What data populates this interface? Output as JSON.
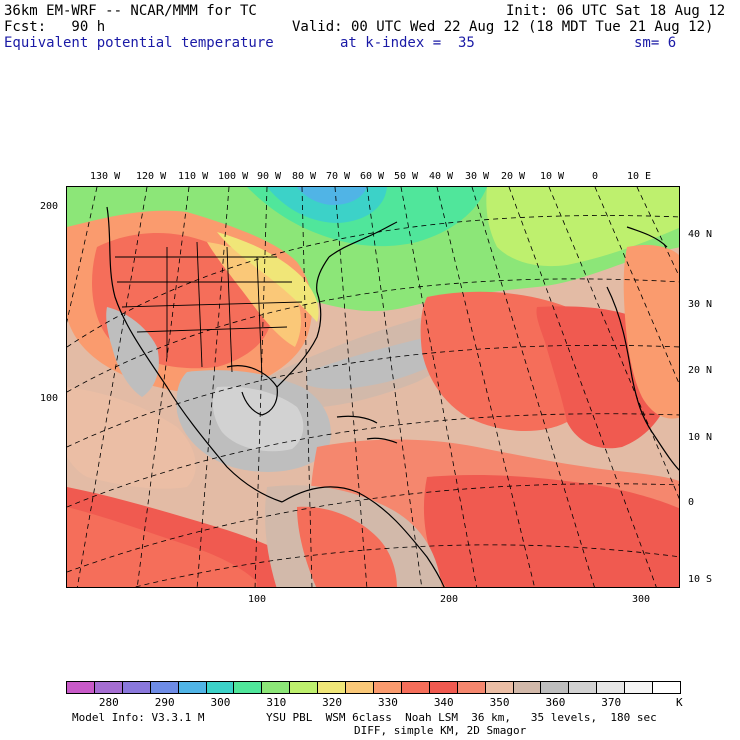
{
  "header": {
    "title": "36km EM-WRF -- NCAR/MMM for TC",
    "init": "Init: 06 UTC Sat 18 Aug 12",
    "fcst": "Fcst:   90 h",
    "valid": "Valid: 00 UTC Wed 22 Aug 12 (18 MDT Tue 21 Aug 12)",
    "field": "Equivalent potential temperature",
    "level": "at k-index =  35",
    "smooth": "sm= 6"
  },
  "map": {
    "lon_labels": [
      "130 W",
      "120 W",
      "110 W",
      "100 W",
      "90 W",
      "80 W",
      "70 W",
      "60 W",
      "50 W",
      "40 W",
      "30 W",
      "20 W",
      "10 W",
      "0",
      "10 E"
    ],
    "lat_labels": [
      "40 N",
      "30 N",
      "20 N",
      "10 N",
      "0",
      "10 S"
    ],
    "grid_y_labels": [
      "200",
      "100"
    ],
    "grid_x_labels": [
      "100",
      "200",
      "300"
    ]
  },
  "colorbar": {
    "colors": [
      "#c85ac8",
      "#a56ed2",
      "#8a78dc",
      "#6e8ce6",
      "#50b4e6",
      "#3cd2c8",
      "#50e69b",
      "#8ce678",
      "#bef06e",
      "#f0e678",
      "#fac878",
      "#fa9b6e",
      "#f56e5a",
      "#f05a50",
      "#f5876e",
      "#ebbea5",
      "#d2b9aa",
      "#bebebe",
      "#d2d2d2",
      "#e6e6e6",
      "#f5f5f5",
      "#ffffff"
    ],
    "labels": [
      "280",
      "290",
      "300",
      "310",
      "320",
      "330",
      "340",
      "350",
      "360",
      "370"
    ],
    "unit": "K"
  },
  "footer": {
    "model": "Model Info: V3.3.1 M",
    "physics": "YSU PBL  WSM 6class  Noah LSM  36 km,   35 levels,  180 sec",
    "diff": "DIFF, simple KM, 2D Smagor"
  }
}
